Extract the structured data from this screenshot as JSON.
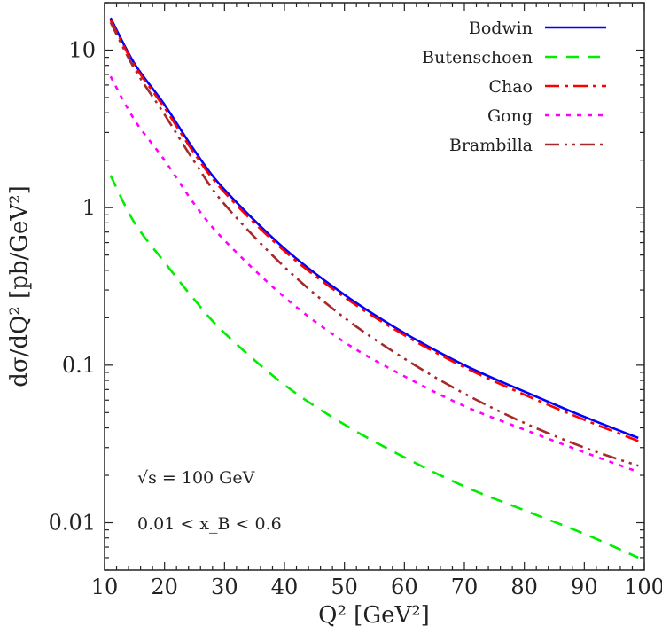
{
  "chart_data": {
    "type": "line",
    "title": "",
    "xlabel": "Q² [GeV²]",
    "ylabel": "dσ/dQ² [pb/GeV²]",
    "xlim": [
      10,
      100
    ],
    "ylim": [
      0.005,
      20
    ],
    "yscale": "log",
    "grid": false,
    "legend_position": "top-right",
    "x_ticks": [
      "10",
      "20",
      "30",
      "40",
      "50",
      "60",
      "70",
      "80",
      "90",
      "100"
    ],
    "y_ticks": [
      {
        "value": 10,
        "label": "10"
      },
      {
        "value": 1,
        "label": "1"
      },
      {
        "value": 0.1,
        "label": "0.1"
      },
      {
        "value": 0.01,
        "label": "0.01"
      }
    ],
    "annotations": [
      "√s = 100 GeV",
      "0.01 < x_B < 0.6"
    ],
    "x": [
      11,
      15,
      20,
      25,
      30,
      40,
      50,
      60,
      70,
      80,
      90,
      99
    ],
    "series": [
      {
        "name": "Bodwin",
        "color": "#0000ff",
        "dash": "solid",
        "values": [
          16,
          8.2,
          4.5,
          2.3,
          1.3,
          0.55,
          0.28,
          0.16,
          0.1,
          0.068,
          0.047,
          0.0345
        ]
      },
      {
        "name": "Butenschoen",
        "color": "#00ee00",
        "dash": "dashed",
        "values": [
          1.6,
          0.8,
          0.45,
          0.26,
          0.16,
          0.075,
          0.042,
          0.026,
          0.017,
          0.012,
          0.0085,
          0.006
        ]
      },
      {
        "name": "Chao",
        "color": "#ff0000",
        "dash": "dash-dot",
        "values": [
          15.5,
          8.0,
          4.3,
          2.2,
          1.25,
          0.53,
          0.27,
          0.155,
          0.097,
          0.065,
          0.045,
          0.033
        ]
      },
      {
        "name": "Gong",
        "color": "#ff00ff",
        "dash": "dotted",
        "values": [
          6.8,
          3.6,
          2.0,
          1.05,
          0.62,
          0.27,
          0.14,
          0.085,
          0.055,
          0.039,
          0.028,
          0.021
        ]
      },
      {
        "name": "Brambilla",
        "color": "#a52a2a",
        "dash": "dash-dot-dot",
        "values": [
          15,
          7.6,
          3.9,
          1.95,
          1.05,
          0.42,
          0.2,
          0.11,
          0.066,
          0.043,
          0.03,
          0.023
        ]
      }
    ]
  }
}
